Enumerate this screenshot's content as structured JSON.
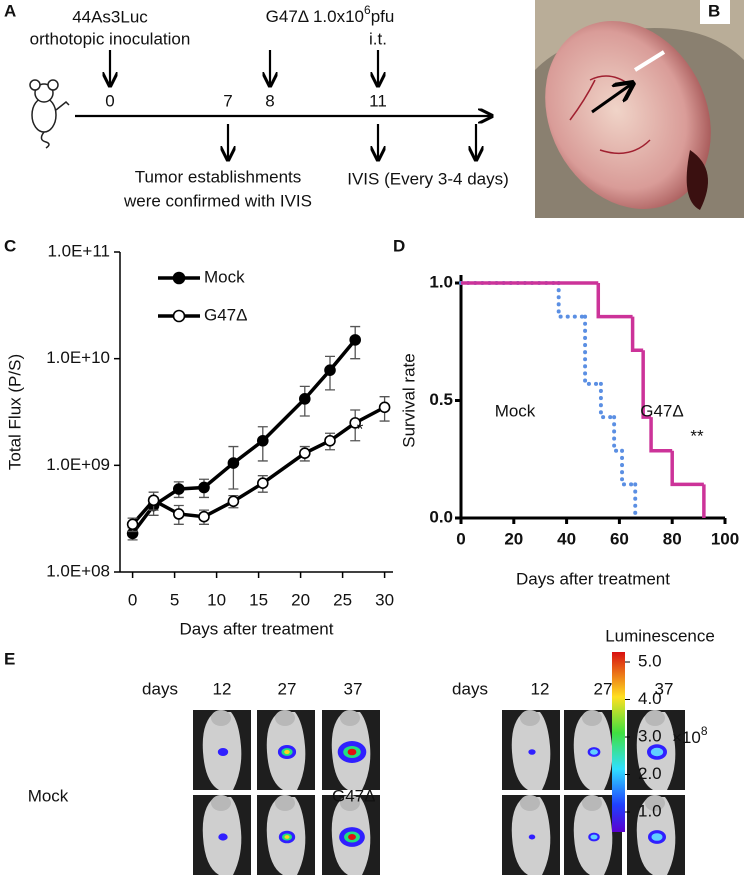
{
  "panels": {
    "a": "A",
    "b": "B",
    "c": "C",
    "d": "D",
    "e": "E"
  },
  "timeline": {
    "inoculation": [
      "44As3Luc",
      "orthotopic inoculation"
    ],
    "virus": {
      "text": "G47Δ 1.0x10",
      "sup": "6",
      "unit": "pfu",
      "route": "i.t."
    },
    "days": [
      0,
      7,
      8,
      11
    ],
    "establish": [
      "Tumor establishments",
      "were confirmed with IVIS"
    ],
    "ivis": "IVIS (Every 3-4 days)"
  },
  "chart_data": [
    {
      "type": "line",
      "log_y": true,
      "ylabel": "Total Flux (P/S)",
      "xlabel": "Days after treatment",
      "xlim": [
        -1.5,
        31
      ],
      "xticks": [
        0,
        5,
        10,
        15,
        20,
        25,
        30
      ],
      "ylim": [
        100000000,
        100000000000
      ],
      "yticks": [
        {
          "value": 100000000,
          "label": "1.0E+08"
        },
        {
          "value": 1000000000,
          "label": "1.0E+09"
        },
        {
          "value": 10000000000,
          "label": "1.0E+10"
        },
        {
          "value": 100000000000,
          "label": "1.0E+11"
        }
      ],
      "annotation": "*",
      "series": [
        {
          "name": "Mock",
          "color": "#000000",
          "marker": "filled",
          "x": [
            0,
            2.5,
            5.5,
            8.5,
            12,
            15.5,
            20.5,
            23.5,
            26.5
          ],
          "values": [
            230000000,
            420000000,
            600000000,
            620000000,
            1050000000,
            1700000000,
            4200000000,
            7800000000,
            15000000000
          ],
          "errors": [
            30000000,
            80000000,
            100000000,
            120000000,
            450000000,
            600000000,
            1300000000,
            2700000000,
            5000000000
          ]
        },
        {
          "name": "G47Δ",
          "color": "#000000",
          "marker": "open",
          "x": [
            0,
            2.5,
            5.5,
            8.5,
            12,
            15.5,
            20.5,
            23.5,
            26.5,
            30
          ],
          "values": [
            280000000,
            470000000,
            350000000,
            330000000,
            460000000,
            680000000,
            1300000000,
            1700000000,
            2500000000,
            3500000000
          ],
          "errors": [
            40000000,
            90000000,
            70000000,
            50000000,
            60000000,
            120000000,
            200000000,
            300000000,
            800000000,
            900000000
          ]
        }
      ]
    },
    {
      "type": "step",
      "ylabel": "Survival rate",
      "xlabel": "Days after treatment",
      "xlim": [
        0,
        100
      ],
      "xticks": [
        0,
        20,
        40,
        60,
        80,
        100
      ],
      "ylim": [
        0,
        1
      ],
      "yticks": [
        {
          "value": 0,
          "label": "0.0"
        },
        {
          "value": 0.5,
          "label": "0.5"
        },
        {
          "value": 1,
          "label": "1.0"
        }
      ],
      "annotation": "**",
      "series": [
        {
          "name": "Mock",
          "color": "#5b8fe3",
          "style": "dotted",
          "x": [
            0,
            37,
            47,
            53,
            58,
            61,
            66
          ],
          "values": [
            1,
            0.857,
            0.571,
            0.429,
            0.286,
            0.143,
            0
          ]
        },
        {
          "name": "G47Δ",
          "color": "#cc3399",
          "style": "solid",
          "x": [
            0,
            52,
            65,
            69,
            72,
            80,
            92
          ],
          "values": [
            1,
            0.857,
            0.714,
            0.429,
            0.286,
            0.143,
            0
          ]
        }
      ]
    }
  ],
  "imaging": {
    "days_label": "days",
    "days": [
      12,
      27,
      37
    ],
    "groups": [
      "Mock",
      "G47Δ"
    ],
    "colorbar": {
      "title": "Luminescence",
      "ticks": [
        {
          "value": 5,
          "label": "5.0"
        },
        {
          "value": 4,
          "label": "4.0"
        },
        {
          "value": 3,
          "label": "3.0"
        },
        {
          "value": 2,
          "label": "2.0"
        },
        {
          "value": 1,
          "label": "1.0"
        }
      ],
      "unit": "×10",
      "unit_exp": "8"
    }
  }
}
